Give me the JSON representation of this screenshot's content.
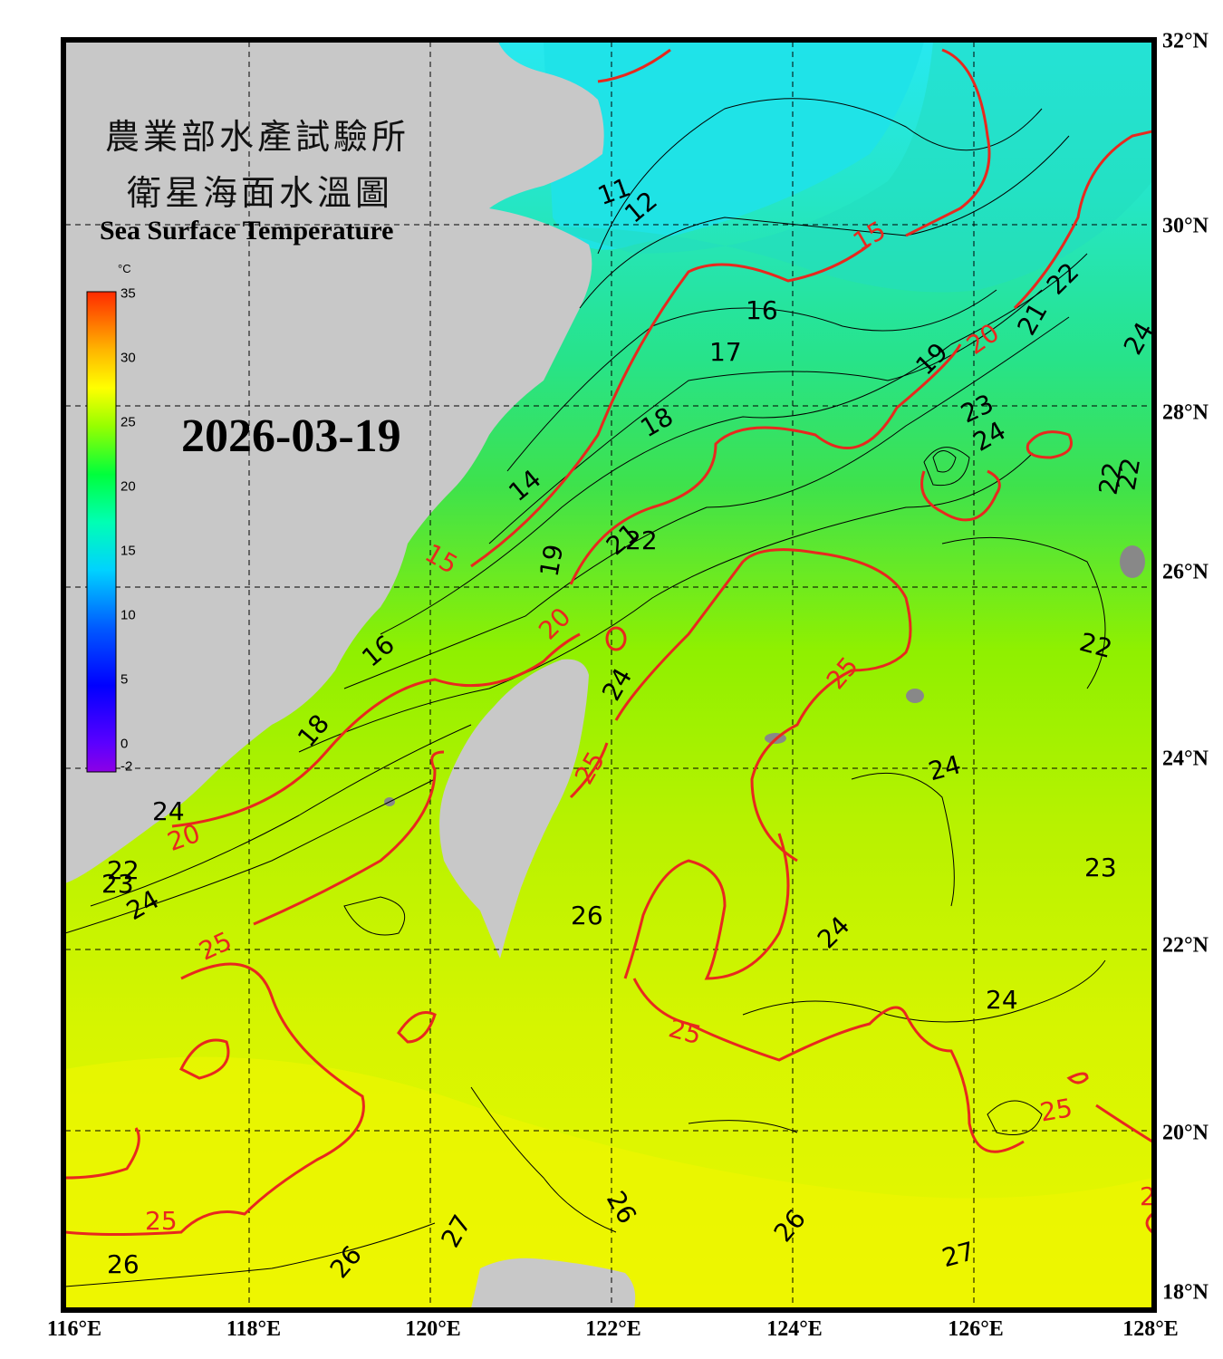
{
  "title": {
    "zh_line1": "農業部水產試驗所",
    "zh_line2": "衛星海面水溫圖",
    "en": "Sea Surface Temperature"
  },
  "date": "2026-03-19",
  "colorbar": {
    "unit": "°C",
    "ticks": [
      "35",
      "30",
      "25",
      "20",
      "15",
      "10",
      "5",
      "0",
      "-2"
    ],
    "tick_values": [
      35,
      30,
      25,
      20,
      15,
      10,
      5,
      0,
      -2
    ],
    "colors": [
      "#ff2a00",
      "#ff8c00",
      "#ffd200",
      "#ffff00",
      "#b4ff00",
      "#5aff00",
      "#00ff3c",
      "#00ffa0",
      "#00ffff",
      "#00b4ff",
      "#005aff",
      "#0000ff",
      "#3c00ff",
      "#7800ff",
      "#8c00e6"
    ]
  },
  "axes": {
    "longitude_labels": [
      "116°E",
      "118°E",
      "120°E",
      "122°E",
      "124°E",
      "126°E",
      "128°E"
    ],
    "latitude_labels": [
      "32°N",
      "30°N",
      "28°N",
      "26°N",
      "24°N",
      "22°N",
      "20°N",
      "18°N"
    ],
    "lon_range": [
      116,
      128
    ],
    "lat_range": [
      18,
      32
    ],
    "grid": "dashed"
  },
  "contour_labels": {
    "major": [
      "15",
      "15",
      "20",
      "20",
      "20",
      "25",
      "25",
      "25",
      "25",
      "25",
      "25",
      "25"
    ],
    "minor": [
      "11",
      "12",
      "14",
      "16",
      "16",
      "17",
      "18",
      "18",
      "19",
      "19",
      "21",
      "21",
      "22",
      "22",
      "22",
      "22",
      "22",
      "23",
      "23",
      "23",
      "24",
      "24",
      "24",
      "24",
      "24",
      "24",
      "24",
      "24",
      "26",
      "26",
      "26",
      "26",
      "26",
      "27",
      "27",
      "22"
    ]
  },
  "colors": {
    "frame": "#000000",
    "land": "#c8c8c8",
    "major_contour": "#e8281e",
    "minor_contour": "#000000",
    "grid": "#000000"
  }
}
